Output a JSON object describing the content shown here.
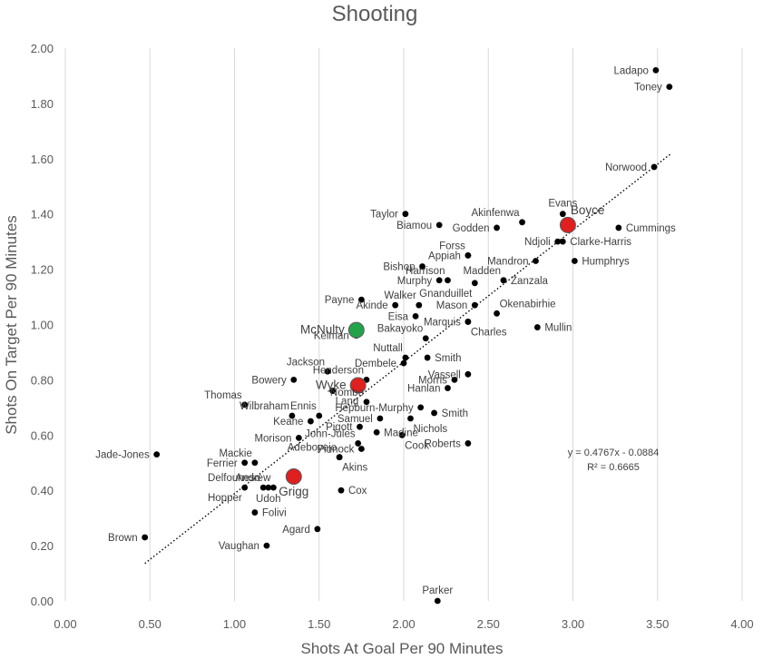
{
  "chart_data": {
    "type": "scatter",
    "title": "Shooting",
    "xlabel": "Shots At Goal Per 90 Minutes",
    "ylabel": "Shots On Target Per 90 Minutes",
    "xlim": [
      0,
      4
    ],
    "ylim": [
      0,
      2
    ],
    "x_ticks": [
      "0.00",
      "0.50",
      "1.00",
      "1.50",
      "2.00",
      "2.50",
      "3.00",
      "3.50",
      "4.00"
    ],
    "y_ticks": [
      "0.00",
      "0.20",
      "0.40",
      "0.60",
      "0.80",
      "1.00",
      "1.20",
      "1.40",
      "1.60",
      "1.80",
      "2.00"
    ],
    "grid": "vertical",
    "colors": {
      "point": "#000000",
      "green": "#22a34a",
      "red": "#e01f1f",
      "grid": "#d9d9d9",
      "trend": "#000000"
    },
    "trendline": {
      "slope": 0.4767,
      "intercept": -0.0884,
      "x_range": [
        0.47,
        3.58
      ]
    },
    "equation": "y = 0.4767x - 0.0884",
    "r2": "R² = 0.6665",
    "points": [
      {
        "name": "Ladapo",
        "x": 3.49,
        "y": 1.92,
        "lp": "L"
      },
      {
        "name": "Toney",
        "x": 3.57,
        "y": 1.86,
        "lp": "L"
      },
      {
        "name": "Norwood",
        "x": 3.48,
        "y": 1.57,
        "lp": "L"
      },
      {
        "name": "Evans",
        "x": 2.94,
        "y": 1.4,
        "lp": "T"
      },
      {
        "name": "Cummings",
        "x": 3.27,
        "y": 1.35,
        "lp": "R"
      },
      {
        "name": "Ndjoli",
        "x": 2.91,
        "y": 1.3,
        "lp": "L"
      },
      {
        "name": "Clarke-Harris",
        "x": 2.94,
        "y": 1.3,
        "lp": "R"
      },
      {
        "name": "Humphrys",
        "x": 3.01,
        "y": 1.23,
        "lp": "R"
      },
      {
        "name": "Taylor",
        "x": 2.01,
        "y": 1.4,
        "lp": "L"
      },
      {
        "name": "Akinfenwa",
        "x": 2.7,
        "y": 1.37,
        "lp": "TL"
      },
      {
        "name": "Biamou",
        "x": 2.21,
        "y": 1.36,
        "lp": "L"
      },
      {
        "name": "Godden",
        "x": 2.55,
        "y": 1.35,
        "lp": "L"
      },
      {
        "name": "Forss",
        "x": 2.38,
        "y": 1.25,
        "lp": "TL"
      },
      {
        "name": "Appiah",
        "x": 2.38,
        "y": 1.25,
        "lp": "L"
      },
      {
        "name": "Mandron",
        "x": 2.78,
        "y": 1.23,
        "lp": "L"
      },
      {
        "name": "Bishop",
        "x": 2.11,
        "y": 1.21,
        "lp": "L"
      },
      {
        "name": "Harrison",
        "x": 2.26,
        "y": 1.16,
        "lp": "TL"
      },
      {
        "name": "Madden",
        "x": 2.59,
        "y": 1.16,
        "lp": "TL"
      },
      {
        "name": "Zanzala",
        "x": 2.59,
        "y": 1.16,
        "lp": "R"
      },
      {
        "name": "Murphy",
        "x": 2.21,
        "y": 1.16,
        "lp": "L"
      },
      {
        "name": "Gnanduillet",
        "x": 2.42,
        "y": 1.15,
        "lp": "BL"
      },
      {
        "name": "Walker",
        "x": 2.09,
        "y": 1.07,
        "lp": "TL"
      },
      {
        "name": "Payne",
        "x": 1.75,
        "y": 1.09,
        "lp": "L"
      },
      {
        "name": "Akinde",
        "x": 1.95,
        "y": 1.07,
        "lp": "L"
      },
      {
        "name": "Mason",
        "x": 2.42,
        "y": 1.07,
        "lp": "L"
      },
      {
        "name": "Okenabirhie",
        "x": 2.55,
        "y": 1.04,
        "lp": "TR"
      },
      {
        "name": "Eisa",
        "x": 2.07,
        "y": 1.03,
        "lp": "L"
      },
      {
        "name": "Marquis",
        "x": 2.38,
        "y": 1.01,
        "lp": "L"
      },
      {
        "name": "Charles",
        "x": 2.38,
        "y": 1.01,
        "lp": "BR"
      },
      {
        "name": "Mullin",
        "x": 2.79,
        "y": 0.99,
        "lp": "R"
      },
      {
        "name": "Kelman",
        "x": 1.72,
        "y": 0.96,
        "lp": "L"
      },
      {
        "name": "Bakayoko",
        "x": 2.13,
        "y": 0.95,
        "lp": "TL"
      },
      {
        "name": "Nuttall",
        "x": 2.01,
        "y": 0.88,
        "lp": "TL"
      },
      {
        "name": "Smith",
        "x": 2.14,
        "y": 0.88,
        "lp": "R"
      },
      {
        "name": "Dembele",
        "x": 2.0,
        "y": 0.86,
        "lp": "L"
      },
      {
        "name": "Jackson",
        "x": 1.55,
        "y": 0.83,
        "lp": "TL"
      },
      {
        "name": "Henderson",
        "x": 1.78,
        "y": 0.8,
        "lp": "TL"
      },
      {
        "name": "Vassell",
        "x": 2.38,
        "y": 0.82,
        "lp": "L"
      },
      {
        "name": "Morris",
        "x": 2.3,
        "y": 0.8,
        "lp": "L"
      },
      {
        "name": "Bowery",
        "x": 1.35,
        "y": 0.8,
        "lp": "L"
      },
      {
        "name": "Hanlan",
        "x": 2.26,
        "y": 0.77,
        "lp": "L"
      },
      {
        "name": "Lang",
        "x": 1.58,
        "y": 0.76,
        "lp": "BR"
      },
      {
        "name": "Thomas",
        "x": 1.06,
        "y": 0.71,
        "lp": "TL"
      },
      {
        "name": "Nombe",
        "x": 1.78,
        "y": 0.72,
        "lp": "TL"
      },
      {
        "name": "Hepburn-Murphy",
        "x": 2.1,
        "y": 0.7,
        "lp": "L"
      },
      {
        "name": "Wilbraham",
        "x": 1.34,
        "y": 0.67,
        "lp": "TL"
      },
      {
        "name": "Ennis",
        "x": 1.5,
        "y": 0.67,
        "lp": "TL"
      },
      {
        "name": "Samuel",
        "x": 1.86,
        "y": 0.66,
        "lp": "L"
      },
      {
        "name": "Smith",
        "x": 2.18,
        "y": 0.68,
        "lp": "R"
      },
      {
        "name": "Keane",
        "x": 1.45,
        "y": 0.65,
        "lp": "L"
      },
      {
        "name": "Pigott",
        "x": 1.74,
        "y": 0.63,
        "lp": "L"
      },
      {
        "name": "Nichols",
        "x": 2.04,
        "y": 0.66,
        "lp": "BR"
      },
      {
        "name": "Madine",
        "x": 1.84,
        "y": 0.61,
        "lp": "R"
      },
      {
        "name": "Morison",
        "x": 1.38,
        "y": 0.59,
        "lp": "L"
      },
      {
        "name": "John-Jules",
        "x": 1.73,
        "y": 0.57,
        "lp": "TL"
      },
      {
        "name": "Cook",
        "x": 1.99,
        "y": 0.6,
        "lp": "BR"
      },
      {
        "name": "Roberts",
        "x": 2.38,
        "y": 0.57,
        "lp": "L"
      },
      {
        "name": "Pinnock",
        "x": 1.75,
        "y": 0.55,
        "lp": "L"
      },
      {
        "name": "Jade-Jones",
        "x": 0.54,
        "y": 0.53,
        "lp": "L"
      },
      {
        "name": "Mackie",
        "x": 1.12,
        "y": 0.5,
        "lp": "TL"
      },
      {
        "name": "Ferrier",
        "x": 1.06,
        "y": 0.5,
        "lp": "L"
      },
      {
        "name": "Adeboyejo",
        "x": 1.62,
        "y": 0.52,
        "lp": "TL"
      },
      {
        "name": "Akins",
        "x": 1.62,
        "y": 0.52,
        "lp": "BR"
      },
      {
        "name": "Delfouneso",
        "x": 1.17,
        "y": 0.41,
        "lp": "TL"
      },
      {
        "name": "Andrew",
        "x": 1.23,
        "y": 0.41,
        "lp": "TL"
      },
      {
        "name": "Hopper",
        "x": 1.06,
        "y": 0.41,
        "lp": "BL"
      },
      {
        "name": "Udoh",
        "x": 1.2,
        "y": 0.41,
        "lp": "B"
      },
      {
        "name": "Cox",
        "x": 1.63,
        "y": 0.4,
        "lp": "R"
      },
      {
        "name": "Folivi",
        "x": 1.12,
        "y": 0.32,
        "lp": "R"
      },
      {
        "name": "Agard",
        "x": 1.49,
        "y": 0.26,
        "lp": "L"
      },
      {
        "name": "Brown",
        "x": 0.47,
        "y": 0.23,
        "lp": "L"
      },
      {
        "name": "Vaughan",
        "x": 1.19,
        "y": 0.2,
        "lp": "L"
      },
      {
        "name": "Parker",
        "x": 2.2,
        "y": 0.0,
        "lp": "T"
      }
    ],
    "highlights": [
      {
        "name": "Boyce",
        "x": 2.97,
        "y": 1.36,
        "color": "red",
        "lp": "TR"
      },
      {
        "name": "McNulty",
        "x": 1.72,
        "y": 0.98,
        "color": "green",
        "lp": "L"
      },
      {
        "name": "Wyke",
        "x": 1.73,
        "y": 0.78,
        "color": "red",
        "lp": "L"
      },
      {
        "name": "Grigg",
        "x": 1.35,
        "y": 0.45,
        "color": "red",
        "lp": "B"
      }
    ]
  }
}
